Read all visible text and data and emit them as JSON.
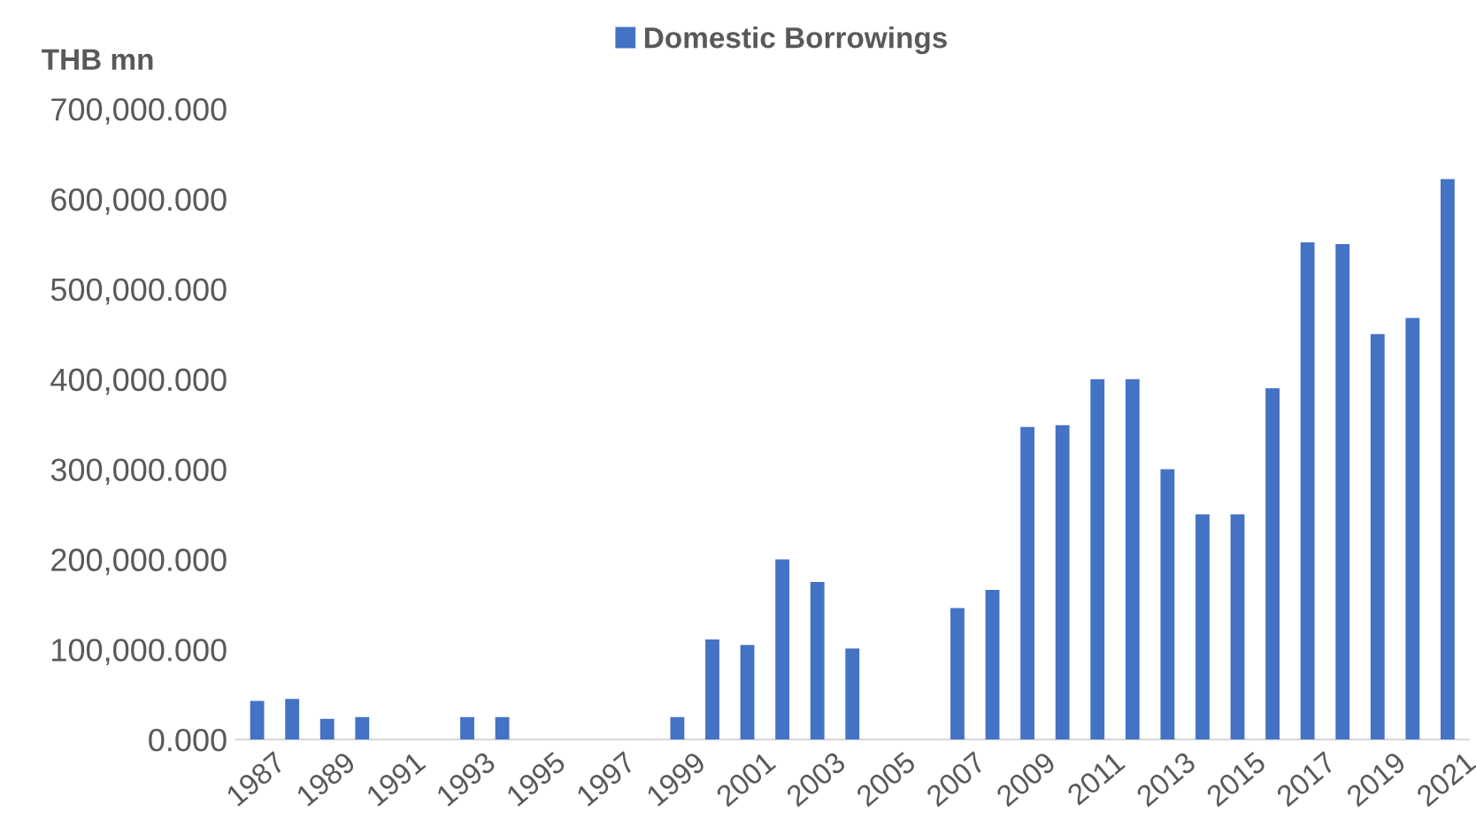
{
  "chart_data": {
    "type": "bar",
    "ylabel": "THB mn",
    "categories": [
      "1987",
      null,
      "1989",
      null,
      "1991",
      null,
      "1993",
      null,
      "1995",
      null,
      "1997",
      null,
      "1999",
      null,
      "2001",
      null,
      "2003",
      null,
      "2005",
      null,
      "2007",
      null,
      "2009",
      null,
      "2011",
      null,
      "2013",
      null,
      "2015",
      null,
      "2017",
      null,
      "2019",
      null,
      "2021"
    ],
    "series": [
      {
        "name": "Domestic Borrowings",
        "color": "#4472c4",
        "values": [
          43000,
          45000,
          23000,
          25000,
          null,
          null,
          25000,
          25000,
          null,
          null,
          null,
          null,
          25000,
          111000,
          105000,
          200000,
          175000,
          101000,
          null,
          null,
          146000,
          166000,
          347000,
          349000,
          400000,
          400000,
          300000,
          250000,
          250000,
          390000,
          552000,
          550000,
          450000,
          468000,
          622000
        ]
      }
    ],
    "ylim": [
      0,
      700000
    ],
    "yticks": [
      {
        "value": 0,
        "label": "0.000"
      },
      {
        "value": 100000,
        "label": "100,000.000"
      },
      {
        "value": 200000,
        "label": "200,000.000"
      },
      {
        "value": 300000,
        "label": "300,000.000"
      },
      {
        "value": 400000,
        "label": "400,000.000"
      },
      {
        "value": 500000,
        "label": "500,000.000"
      },
      {
        "value": 600000,
        "label": "600,000.000"
      },
      {
        "value": 700000,
        "label": "700,000.000"
      }
    ],
    "grid": false,
    "legend": "top"
  }
}
